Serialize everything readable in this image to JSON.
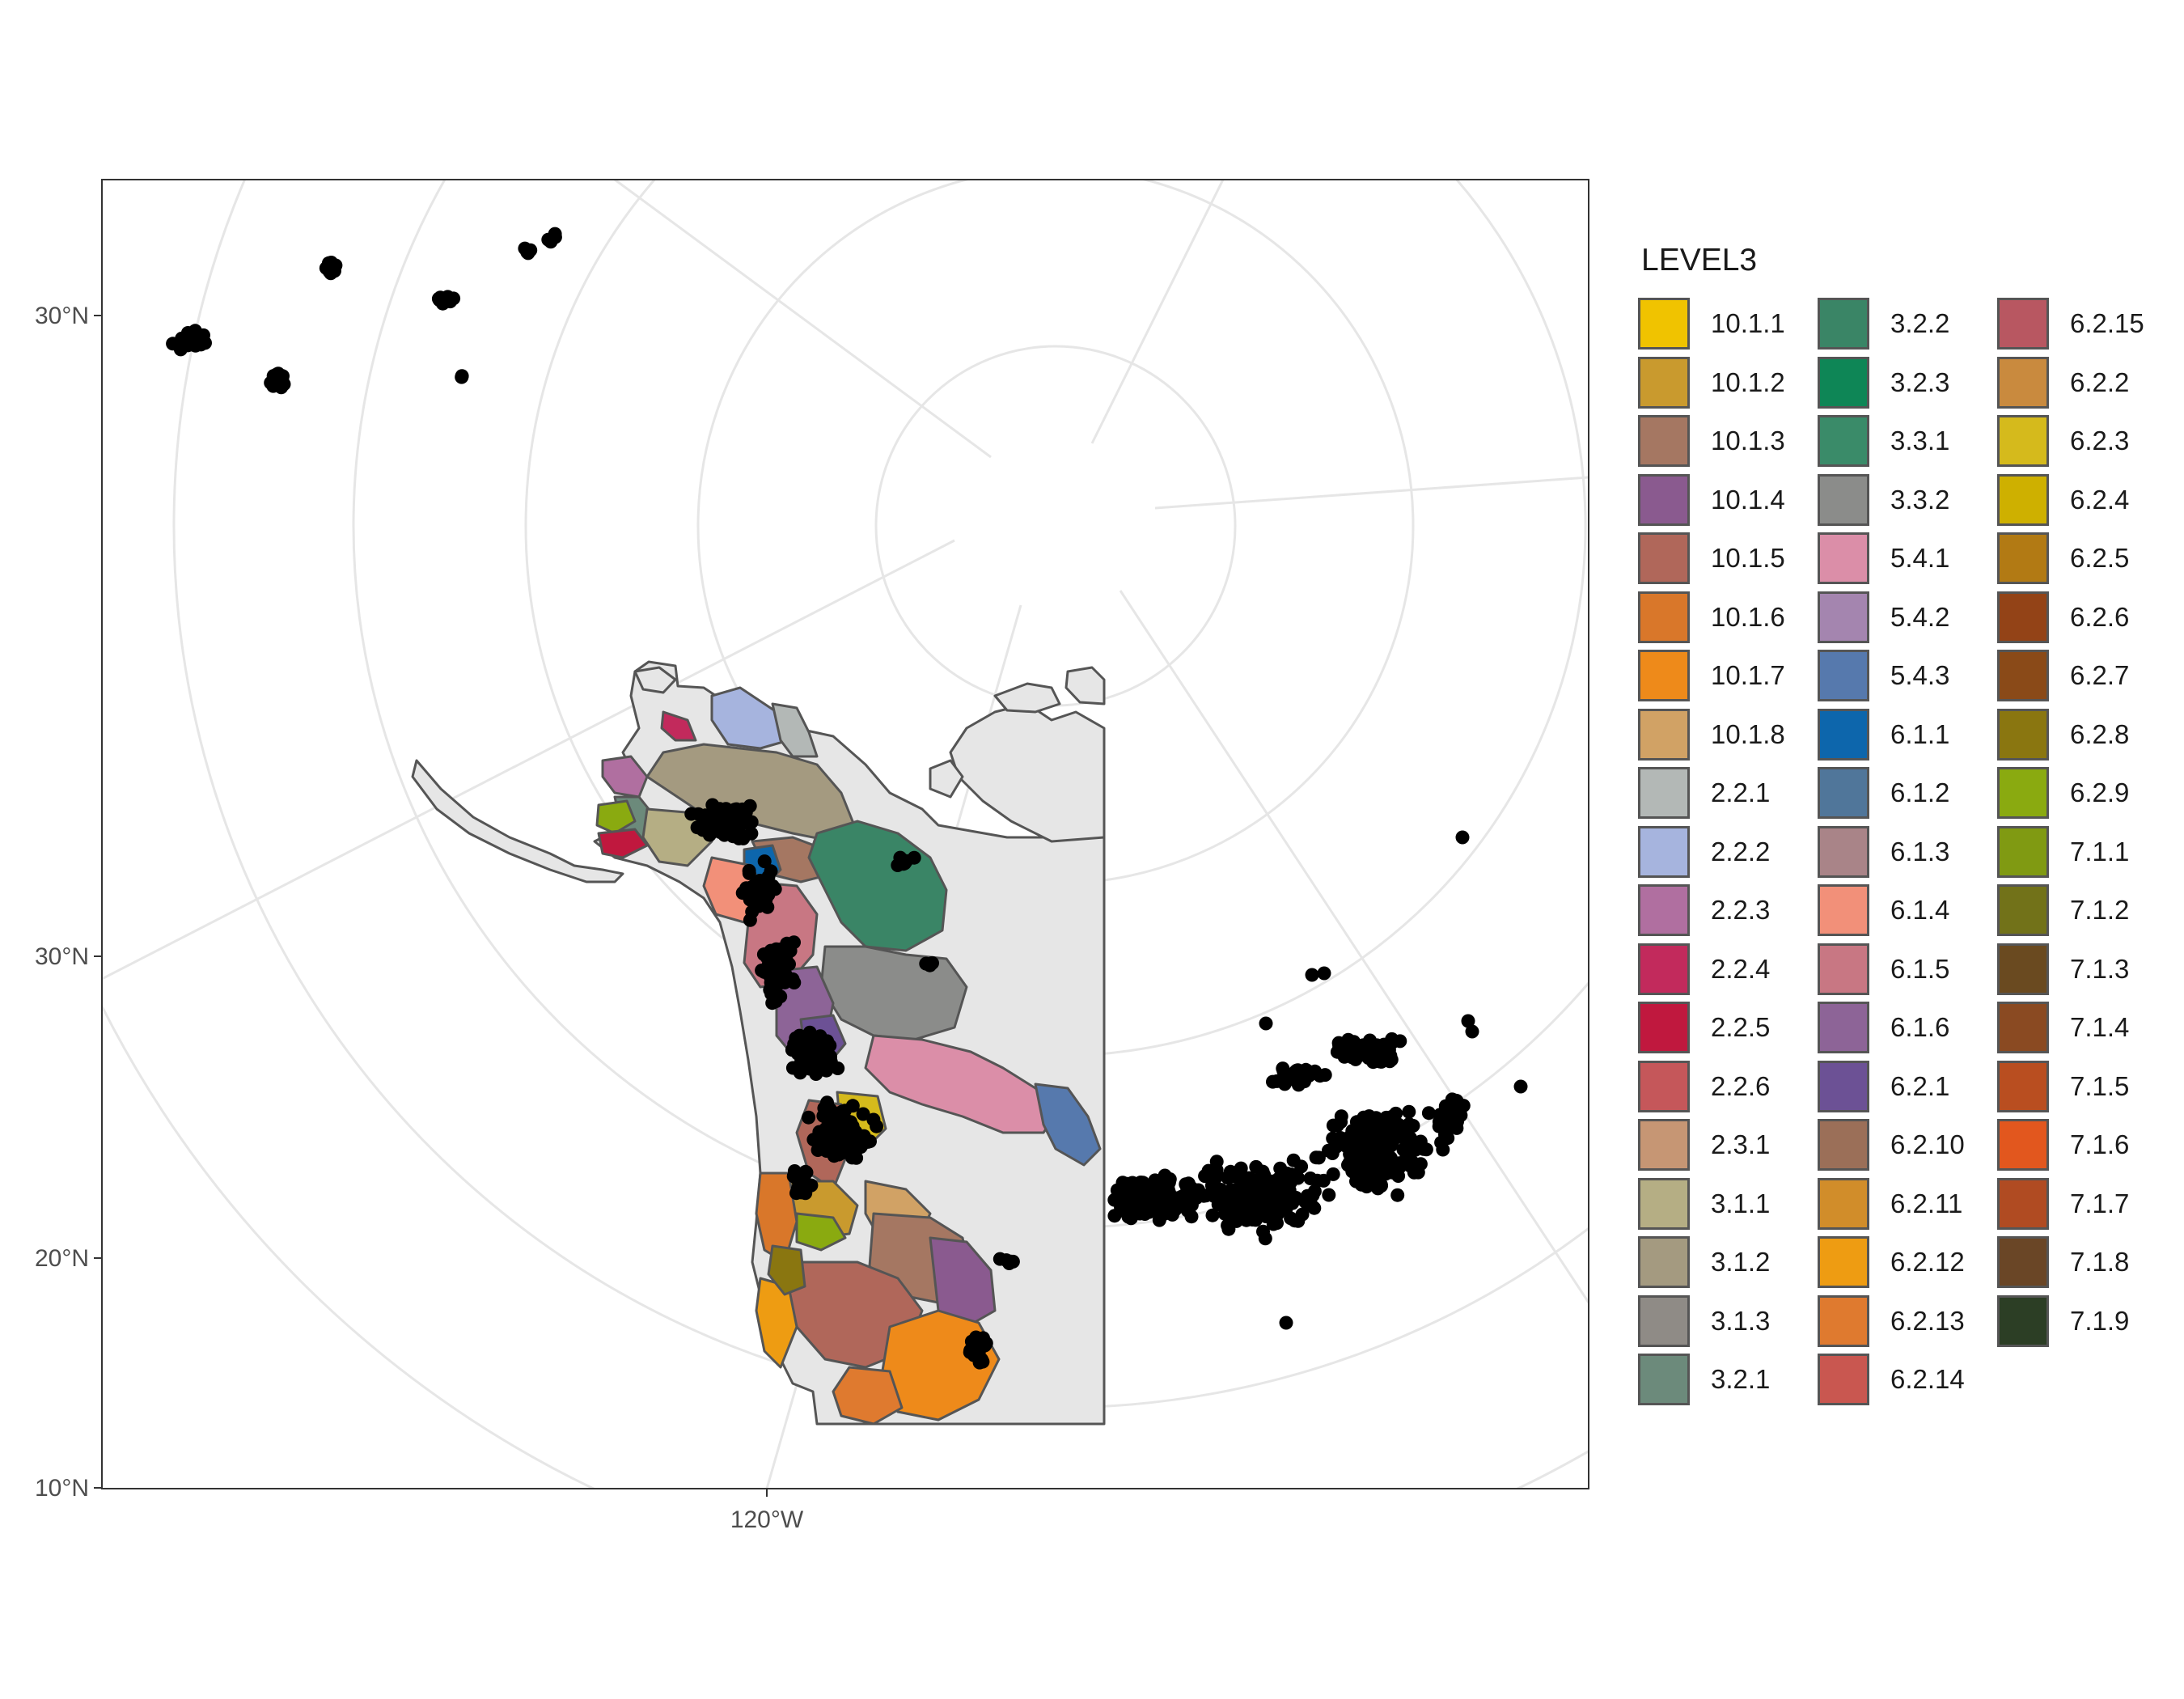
{
  "axes": {
    "y_ticks": [
      "30°N",
      "30°N",
      "20°N",
      "10°N"
    ],
    "x_ticks": [
      "120°W"
    ]
  },
  "legend": {
    "title": "LEVEL3",
    "items": [
      {
        "label": "10.1.1",
        "color": "#F0C300"
      },
      {
        "label": "10.1.2",
        "color": "#C99A2E"
      },
      {
        "label": "10.1.3",
        "color": "#A57762"
      },
      {
        "label": "10.1.4",
        "color": "#8A5A8F"
      },
      {
        "label": "10.1.5",
        "color": "#B0675A"
      },
      {
        "label": "10.1.6",
        "color": "#D9772A"
      },
      {
        "label": "10.1.7",
        "color": "#EE8A1A"
      },
      {
        "label": "10.1.8",
        "color": "#D1A265"
      },
      {
        "label": "2.2.1",
        "color": "#B3B8B6"
      },
      {
        "label": "2.2.2",
        "color": "#A6B4DE"
      },
      {
        "label": "2.2.3",
        "color": "#B06FA0"
      },
      {
        "label": "2.2.4",
        "color": "#C22A5C"
      },
      {
        "label": "2.2.5",
        "color": "#C0183E"
      },
      {
        "label": "2.2.6",
        "color": "#C5575A"
      },
      {
        "label": "2.3.1",
        "color": "#C69674"
      },
      {
        "label": "3.1.1",
        "color": "#B5AE84"
      },
      {
        "label": "3.1.2",
        "color": "#A49A80"
      },
      {
        "label": "3.1.3",
        "color": "#8F8B86"
      },
      {
        "label": "3.2.1",
        "color": "#6C8A7B"
      },
      {
        "label": "3.2.2",
        "color": "#3A8566"
      },
      {
        "label": "3.2.3",
        "color": "#0E8656"
      },
      {
        "label": "3.3.1",
        "color": "#3A8B69"
      },
      {
        "label": "3.3.2",
        "color": "#8B8C8A"
      },
      {
        "label": "5.4.1",
        "color": "#DB8EA8"
      },
      {
        "label": "5.4.2",
        "color": "#A485AF"
      },
      {
        "label": "5.4.3",
        "color": "#5679AD"
      },
      {
        "label": "6.1.1",
        "color": "#0D66AC"
      },
      {
        "label": "6.1.2",
        "color": "#50769A"
      },
      {
        "label": "6.1.3",
        "color": "#A98488"
      },
      {
        "label": "6.1.4",
        "color": "#F29079"
      },
      {
        "label": "6.1.5",
        "color": "#C87783"
      },
      {
        "label": "6.1.6",
        "color": "#8D6497"
      },
      {
        "label": "6.2.1",
        "color": "#6C5195"
      },
      {
        "label": "6.2.10",
        "color": "#9B6F58"
      },
      {
        "label": "6.2.11",
        "color": "#D18D2A"
      },
      {
        "label": "6.2.12",
        "color": "#EE9C12"
      },
      {
        "label": "6.2.13",
        "color": "#DF7A2F"
      },
      {
        "label": "6.2.14",
        "color": "#C95750"
      },
      {
        "label": "6.2.15",
        "color": "#B85761"
      },
      {
        "label": "6.2.2",
        "color": "#C98A3E"
      },
      {
        "label": "6.2.3",
        "color": "#D5BA1C"
      },
      {
        "label": "6.2.4",
        "color": "#CEB000"
      },
      {
        "label": "6.2.5",
        "color": "#B27A14"
      },
      {
        "label": "6.2.6",
        "color": "#934317"
      },
      {
        "label": "6.2.7",
        "color": "#8A4A18"
      },
      {
        "label": "6.2.8",
        "color": "#8A7610"
      },
      {
        "label": "6.2.9",
        "color": "#8AAA10"
      },
      {
        "label": "7.1.1",
        "color": "#809A12"
      },
      {
        "label": "7.1.2",
        "color": "#727219"
      },
      {
        "label": "7.1.3",
        "color": "#6A4A20"
      },
      {
        "label": "7.1.4",
        "color": "#8A4A22"
      },
      {
        "label": "7.1.5",
        "color": "#B94E20"
      },
      {
        "label": "7.1.6",
        "color": "#E2571E"
      },
      {
        "label": "7.1.7",
        "color": "#B04B22"
      },
      {
        "label": "7.1.8",
        "color": "#6A4626"
      },
      {
        "label": "7.1.9",
        "color": "#2C3E25"
      }
    ]
  },
  "map": {
    "land_fill": "#E6E6E6",
    "outline_color": "#555555",
    "graticule_color": "#E6E6E6",
    "point_color": "#000000"
  }
}
